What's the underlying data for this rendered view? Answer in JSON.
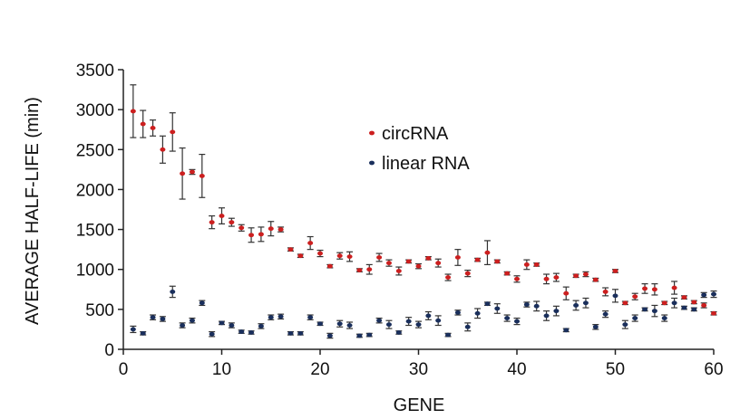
{
  "chart_data": {
    "type": "scatter",
    "xlabel": "GENE",
    "ylabel": "AVERAGE HALF-LIFE (min)",
    "xlim": [
      0,
      60
    ],
    "ylim": [
      0,
      3500
    ],
    "xticks": [
      "0",
      "10",
      "20",
      "30",
      "40",
      "50",
      "60"
    ],
    "yticks": [
      "0",
      "500",
      "1000",
      "1500",
      "2000",
      "2500",
      "3000",
      "3500"
    ],
    "grid": false,
    "legend_position": "center",
    "error_bars": true,
    "series": [
      {
        "name": "circRNA",
        "color": "#cc1f1f",
        "x": [
          1,
          2,
          3,
          4,
          5,
          6,
          7,
          8,
          9,
          10,
          11,
          12,
          13,
          14,
          15,
          16,
          17,
          18,
          19,
          20,
          21,
          22,
          23,
          24,
          25,
          26,
          27,
          28,
          29,
          30,
          31,
          32,
          33,
          34,
          35,
          36,
          37,
          38,
          39,
          40,
          41,
          42,
          43,
          44,
          45,
          46,
          47,
          48,
          49,
          50,
          51,
          52,
          53,
          54,
          55,
          56,
          57,
          58,
          59,
          60
        ],
        "values": [
          2980,
          2820,
          2770,
          2500,
          2720,
          2200,
          2220,
          2170,
          1590,
          1670,
          1590,
          1520,
          1430,
          1440,
          1510,
          1500,
          1250,
          1170,
          1330,
          1200,
          1040,
          1170,
          1160,
          990,
          1000,
          1150,
          1080,
          980,
          1100,
          1040,
          1140,
          1080,
          900,
          1150,
          950,
          1120,
          1210,
          1100,
          950,
          880,
          1060,
          1060,
          880,
          900,
          700,
          920,
          940,
          870,
          720,
          980,
          580,
          660,
          760,
          750,
          580,
          770,
          650,
          590,
          550,
          450
        ],
        "errors": [
          330,
          170,
          100,
          170,
          240,
          320,
          30,
          270,
          80,
          100,
          50,
          40,
          90,
          90,
          90,
          30,
          20,
          20,
          80,
          40,
          20,
          40,
          60,
          20,
          60,
          50,
          40,
          50,
          20,
          30,
          20,
          50,
          40,
          100,
          40,
          20,
          150,
          20,
          20,
          40,
          60,
          20,
          60,
          50,
          80,
          20,
          30,
          20,
          50,
          20,
          20,
          40,
          60,
          70,
          20,
          80,
          20,
          20,
          30,
          20
        ]
      },
      {
        "name": "linear RNA",
        "color": "#1a2f5c",
        "x": [
          1,
          2,
          3,
          4,
          5,
          6,
          7,
          8,
          9,
          10,
          11,
          12,
          13,
          14,
          15,
          16,
          17,
          18,
          19,
          20,
          21,
          22,
          23,
          24,
          25,
          26,
          27,
          28,
          29,
          30,
          31,
          32,
          33,
          34,
          35,
          36,
          37,
          38,
          39,
          40,
          41,
          42,
          43,
          44,
          45,
          46,
          47,
          48,
          49,
          50,
          51,
          52,
          53,
          54,
          55,
          56,
          57,
          58,
          59,
          60
        ],
        "values": [
          250,
          200,
          400,
          380,
          720,
          300,
          360,
          580,
          190,
          330,
          300,
          220,
          210,
          290,
          400,
          410,
          200,
          200,
          400,
          320,
          170,
          320,
          300,
          170,
          180,
          360,
          310,
          210,
          350,
          310,
          420,
          360,
          180,
          460,
          280,
          450,
          570,
          510,
          390,
          350,
          560,
          540,
          420,
          480,
          240,
          550,
          580,
          280,
          440,
          670,
          310,
          390,
          500,
          480,
          390,
          580,
          520,
          500,
          680,
          690
        ],
        "errors": [
          40,
          20,
          30,
          30,
          70,
          30,
          30,
          30,
          30,
          20,
          30,
          20,
          20,
          30,
          30,
          30,
          20,
          20,
          30,
          20,
          30,
          40,
          40,
          20,
          20,
          30,
          50,
          20,
          50,
          40,
          50,
          60,
          20,
          30,
          50,
          60,
          20,
          60,
          40,
          40,
          30,
          60,
          60,
          60,
          20,
          60,
          60,
          30,
          40,
          80,
          50,
          40,
          20,
          70,
          40,
          60,
          20,
          20,
          30,
          40
        ]
      }
    ]
  }
}
